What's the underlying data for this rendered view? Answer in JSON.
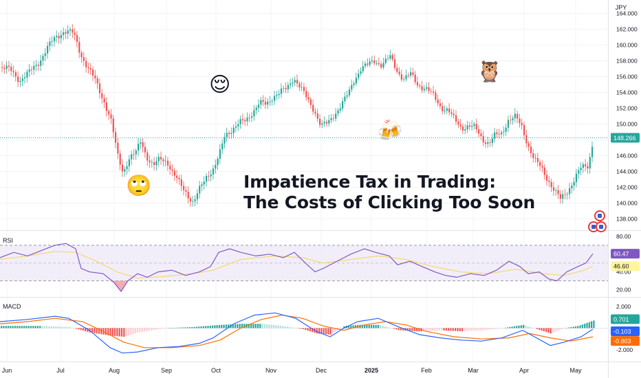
{
  "chart_data": {
    "type": "candlestick",
    "currency_label": "JPY",
    "title_lines": [
      "Impatience Tax in Trading:",
      "The Costs of Clicking Too Soon"
    ],
    "x_ticks": [
      "Jun",
      "Jul",
      "Aug",
      "Sep",
      "Oct",
      "Nov",
      "Dec",
      "2025",
      "Feb",
      "Mar",
      "Apr",
      "May"
    ],
    "price": {
      "ylim": [
        137,
        165
      ],
      "y_ticks": [
        "164.000",
        "162.000",
        "160.000",
        "158.000",
        "156.000",
        "154.000",
        "152.000",
        "150.000",
        "148.000",
        "146.000",
        "144.000",
        "142.000",
        "140.000",
        "138.000"
      ],
      "last_price": "148.266",
      "last_value": 148.266,
      "close_path": [
        [
          0,
          157.2
        ],
        [
          14,
          156.8
        ],
        [
          28,
          155.6
        ],
        [
          42,
          156.5
        ],
        [
          56,
          158.0
        ],
        [
          68,
          159.6
        ],
        [
          80,
          161.0
        ],
        [
          92,
          161.8
        ],
        [
          106,
          161.4
        ],
        [
          116,
          159.0
        ],
        [
          126,
          157.2
        ],
        [
          138,
          155.4
        ],
        [
          150,
          153.0
        ],
        [
          160,
          150.5
        ],
        [
          170,
          146.0
        ],
        [
          178,
          144.0
        ],
        [
          186,
          145.6
        ],
        [
          196,
          146.2
        ],
        [
          204,
          148.0
        ],
        [
          212,
          146.0
        ],
        [
          222,
          144.6
        ],
        [
          232,
          145.6
        ],
        [
          242,
          145.4
        ],
        [
          250,
          143.8
        ],
        [
          260,
          142.4
        ],
        [
          270,
          141.4
        ],
        [
          280,
          140.0
        ],
        [
          290,
          141.8
        ],
        [
          300,
          143.6
        ],
        [
          310,
          144.4
        ],
        [
          318,
          146.0
        ],
        [
          326,
          148.6
        ],
        [
          336,
          149.4
        ],
        [
          346,
          150.0
        ],
        [
          356,
          150.4
        ],
        [
          366,
          151.6
        ],
        [
          376,
          152.6
        ],
        [
          386,
          152.4
        ],
        [
          396,
          153.6
        ],
        [
          406,
          154.0
        ],
        [
          416,
          154.4
        ],
        [
          426,
          156.0
        ],
        [
          436,
          154.6
        ],
        [
          446,
          153.0
        ],
        [
          456,
          151.8
        ],
        [
          466,
          149.8
        ],
        [
          476,
          150.0
        ],
        [
          486,
          151.4
        ],
        [
          496,
          152.6
        ],
        [
          506,
          153.8
        ],
        [
          514,
          155.6
        ],
        [
          524,
          157.2
        ],
        [
          534,
          157.4
        ],
        [
          544,
          158.0
        ],
        [
          554,
          157.6
        ],
        [
          566,
          158.4
        ],
        [
          576,
          156.8
        ],
        [
          586,
          155.8
        ],
        [
          596,
          156.2
        ],
        [
          606,
          155.0
        ],
        [
          618,
          154.6
        ],
        [
          628,
          153.6
        ],
        [
          640,
          152.2
        ],
        [
          650,
          151.8
        ],
        [
          660,
          150.4
        ],
        [
          670,
          149.6
        ],
        [
          680,
          149.8
        ],
        [
          690,
          149.4
        ],
        [
          700,
          148.2
        ],
        [
          710,
          147.6
        ],
        [
          718,
          148.4
        ],
        [
          728,
          148.8
        ],
        [
          738,
          150.6
        ],
        [
          748,
          150.8
        ],
        [
          758,
          149.6
        ],
        [
          766,
          147.6
        ],
        [
          776,
          145.4
        ],
        [
          786,
          144.4
        ],
        [
          796,
          143.0
        ],
        [
          806,
          141.4
        ],
        [
          814,
          140.4
        ],
        [
          824,
          141.6
        ],
        [
          834,
          143.0
        ],
        [
          844,
          144.4
        ],
        [
          854,
          144.8
        ],
        [
          862,
          148.266
        ]
      ]
    },
    "rsi": {
      "label": "RSI",
      "y_ticks": [
        "80.00",
        "40.00",
        "20.00"
      ],
      "level_high": 70,
      "level_low": 30,
      "ylim": [
        15,
        83
      ],
      "value": "60.47",
      "ma_value": "46.60",
      "series_path": [
        [
          0,
          56
        ],
        [
          20,
          62
        ],
        [
          40,
          58
        ],
        [
          60,
          64
        ],
        [
          80,
          70
        ],
        [
          96,
          72
        ],
        [
          110,
          66
        ],
        [
          118,
          44
        ],
        [
          130,
          40
        ],
        [
          150,
          38
        ],
        [
          166,
          28
        ],
        [
          176,
          18
        ],
        [
          186,
          30
        ],
        [
          200,
          38
        ],
        [
          214,
          34
        ],
        [
          230,
          40
        ],
        [
          250,
          42
        ],
        [
          270,
          36
        ],
        [
          290,
          40
        ],
        [
          306,
          46
        ],
        [
          318,
          62
        ],
        [
          334,
          66
        ],
        [
          350,
          62
        ],
        [
          372,
          58
        ],
        [
          392,
          60
        ],
        [
          412,
          56
        ],
        [
          428,
          62
        ],
        [
          444,
          50
        ],
        [
          458,
          40
        ],
        [
          470,
          44
        ],
        [
          490,
          52
        ],
        [
          510,
          60
        ],
        [
          530,
          66
        ],
        [
          546,
          62
        ],
        [
          566,
          58
        ],
        [
          578,
          48
        ],
        [
          596,
          52
        ],
        [
          614,
          46
        ],
        [
          632,
          40
        ],
        [
          648,
          36
        ],
        [
          664,
          34
        ],
        [
          684,
          38
        ],
        [
          704,
          36
        ],
        [
          722,
          42
        ],
        [
          740,
          52
        ],
        [
          756,
          46
        ],
        [
          768,
          38
        ],
        [
          784,
          40
        ],
        [
          798,
          32
        ],
        [
          810,
          30
        ],
        [
          824,
          40
        ],
        [
          840,
          46
        ],
        [
          852,
          50
        ],
        [
          862,
          60.47
        ]
      ],
      "ma_path": [
        [
          0,
          54
        ],
        [
          40,
          58
        ],
        [
          80,
          63
        ],
        [
          110,
          62
        ],
        [
          140,
          52
        ],
        [
          170,
          40
        ],
        [
          200,
          33
        ],
        [
          240,
          35
        ],
        [
          280,
          38
        ],
        [
          310,
          42
        ],
        [
          350,
          54
        ],
        [
          400,
          58
        ],
        [
          440,
          56
        ],
        [
          470,
          50
        ],
        [
          510,
          54
        ],
        [
          550,
          58
        ],
        [
          590,
          54
        ],
        [
          630,
          46
        ],
        [
          670,
          40
        ],
        [
          710,
          38
        ],
        [
          750,
          43
        ],
        [
          790,
          38
        ],
        [
          820,
          36
        ],
        [
          850,
          42
        ],
        [
          862,
          46.6
        ]
      ]
    },
    "macd": {
      "label": "MACD",
      "y_ticks": [
        "2.000",
        "-2.000"
      ],
      "ylim": [
        -2.7,
        2.5
      ],
      "histogram_value": "0.701",
      "macd_value": "-0.103",
      "signal_value": "-0.803",
      "macd_path": [
        [
          0,
          0.6
        ],
        [
          40,
          0.8
        ],
        [
          80,
          1.1
        ],
        [
          100,
          0.9
        ],
        [
          130,
          -0.2
        ],
        [
          160,
          -1.8
        ],
        [
          178,
          -2.3
        ],
        [
          200,
          -2.2
        ],
        [
          230,
          -1.8
        ],
        [
          260,
          -1.7
        ],
        [
          290,
          -1.4
        ],
        [
          310,
          -0.9
        ],
        [
          340,
          0.4
        ],
        [
          370,
          1.2
        ],
        [
          400,
          1.4
        ],
        [
          430,
          0.9
        ],
        [
          460,
          -0.3
        ],
        [
          480,
          -0.8
        ],
        [
          500,
          0.0
        ],
        [
          520,
          0.6
        ],
        [
          550,
          0.9
        ],
        [
          580,
          0.1
        ],
        [
          610,
          -0.6
        ],
        [
          640,
          -0.9
        ],
        [
          670,
          -1.1
        ],
        [
          700,
          -1.2
        ],
        [
          730,
          -0.9
        ],
        [
          760,
          -0.2
        ],
        [
          780,
          -0.9
        ],
        [
          800,
          -1.6
        ],
        [
          820,
          -1.3
        ],
        [
          845,
          -0.8
        ],
        [
          862,
          -0.103
        ]
      ],
      "signal_path": [
        [
          0,
          0.4
        ],
        [
          40,
          0.6
        ],
        [
          80,
          0.9
        ],
        [
          120,
          0.6
        ],
        [
          150,
          -0.3
        ],
        [
          180,
          -1.3
        ],
        [
          210,
          -1.8
        ],
        [
          250,
          -1.8
        ],
        [
          290,
          -1.6
        ],
        [
          320,
          -1.1
        ],
        [
          350,
          0.0
        ],
        [
          380,
          0.8
        ],
        [
          410,
          1.2
        ],
        [
          440,
          0.9
        ],
        [
          470,
          0.2
        ],
        [
          500,
          -0.2
        ],
        [
          530,
          0.3
        ],
        [
          560,
          0.6
        ],
        [
          590,
          0.3
        ],
        [
          620,
          -0.3
        ],
        [
          660,
          -0.8
        ],
        [
          700,
          -1.0
        ],
        [
          740,
          -0.9
        ],
        [
          770,
          -0.5
        ],
        [
          800,
          -0.9
        ],
        [
          830,
          -1.2
        ],
        [
          850,
          -0.95
        ],
        [
          862,
          -0.803
        ]
      ],
      "hist_points": [
        [
          0,
          0.2
        ],
        [
          60,
          0.2
        ],
        [
          100,
          0.1
        ],
        [
          130,
          -0.4
        ],
        [
          160,
          -0.7
        ],
        [
          180,
          -0.8
        ],
        [
          200,
          -0.4
        ],
        [
          240,
          0.0
        ],
        [
          280,
          0.1
        ],
        [
          320,
          0.3
        ],
        [
          350,
          0.4
        ],
        [
          380,
          0.4
        ],
        [
          410,
          0.2
        ],
        [
          440,
          -0.1
        ],
        [
          460,
          -0.5
        ],
        [
          480,
          -0.6
        ],
        [
          500,
          0.2
        ],
        [
          520,
          0.3
        ],
        [
          550,
          0.3
        ],
        [
          580,
          -0.2
        ],
        [
          610,
          -0.3
        ],
        [
          640,
          -0.2
        ],
        [
          670,
          -0.3
        ],
        [
          700,
          -0.2
        ],
        [
          730,
          0.0
        ],
        [
          760,
          0.3
        ],
        [
          780,
          -0.1
        ],
        [
          800,
          -0.5
        ],
        [
          820,
          0.0
        ],
        [
          840,
          0.2
        ],
        [
          862,
          0.701
        ]
      ]
    }
  },
  "decorations": {
    "emojis": [
      "relieved-face",
      "beer-mugs",
      "owl",
      "eye-roll-face"
    ],
    "flag_icons": [
      "us-flag-icon",
      "us-flag-icon-pair"
    ]
  },
  "colors": {
    "up": "#26a69a",
    "down": "#ef5350",
    "rsi_line": "#7e57c2",
    "rsi_ma": "#f5d76e",
    "rsi_band": "#ede7f6",
    "macd_line": "#2962ff",
    "signal_line": "#ff6d00",
    "hist_up": "#26a69a",
    "hist_down": "#ef5350",
    "grid": "#f0f3fa",
    "axis_text": "#131722"
  }
}
